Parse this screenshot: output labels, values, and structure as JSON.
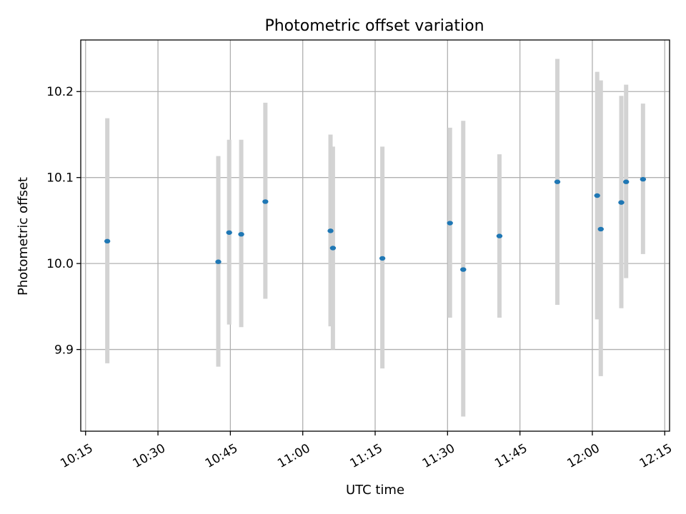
{
  "chart_data": {
    "type": "scatter",
    "title": "Photometric offset variation",
    "xlabel": "UTC time",
    "ylabel": "Photometric offset",
    "x_scale": "time",
    "xlim": [
      "10:14",
      "12:16"
    ],
    "ylim": [
      9.805,
      10.26
    ],
    "grid": true,
    "x_ticks": [
      "10:15",
      "10:30",
      "10:45",
      "11:00",
      "11:15",
      "11:30",
      "11:45",
      "12:00",
      "12:15"
    ],
    "y_ticks": [
      9.9,
      10.0,
      10.1,
      10.2
    ],
    "y_tick_labels": [
      "9.9",
      "10.0",
      "10.1",
      "10.2"
    ],
    "errorbar_color": "#d3d3d3",
    "marker_color": "#1f77b4",
    "points": [
      {
        "x": "10:19:30",
        "y": 10.026,
        "ylo": 9.884,
        "yhi": 10.169
      },
      {
        "x": "10:42:30",
        "y": 10.002,
        "ylo": 9.88,
        "yhi": 10.125
      },
      {
        "x": "10:44:45",
        "y": 10.036,
        "ylo": 9.929,
        "yhi": 10.144
      },
      {
        "x": "10:47:15",
        "y": 10.034,
        "ylo": 9.926,
        "yhi": 10.144
      },
      {
        "x": "10:52:15",
        "y": 10.072,
        "ylo": 9.959,
        "yhi": 10.187
      },
      {
        "x": "11:05:45",
        "y": 10.038,
        "ylo": 9.927,
        "yhi": 10.15
      },
      {
        "x": "11:06:15",
        "y": 10.018,
        "ylo": 9.9,
        "yhi": 10.136
      },
      {
        "x": "11:16:30",
        "y": 10.006,
        "ylo": 9.878,
        "yhi": 10.136
      },
      {
        "x": "11:30:30",
        "y": 10.047,
        "ylo": 9.937,
        "yhi": 10.158
      },
      {
        "x": "11:33:15",
        "y": 9.993,
        "ylo": 9.822,
        "yhi": 10.166
      },
      {
        "x": "11:40:45",
        "y": 10.032,
        "ylo": 9.937,
        "yhi": 10.127
      },
      {
        "x": "11:52:45",
        "y": 10.095,
        "ylo": 9.952,
        "yhi": 10.238
      },
      {
        "x": "12:01:00",
        "y": 10.079,
        "ylo": 9.935,
        "yhi": 10.223
      },
      {
        "x": "12:01:45",
        "y": 10.04,
        "ylo": 9.869,
        "yhi": 10.213
      },
      {
        "x": "12:06:00",
        "y": 10.071,
        "ylo": 9.948,
        "yhi": 10.195
      },
      {
        "x": "12:07:00",
        "y": 10.095,
        "ylo": 9.983,
        "yhi": 10.208
      },
      {
        "x": "12:10:30",
        "y": 10.098,
        "ylo": 10.011,
        "yhi": 10.186
      }
    ]
  }
}
